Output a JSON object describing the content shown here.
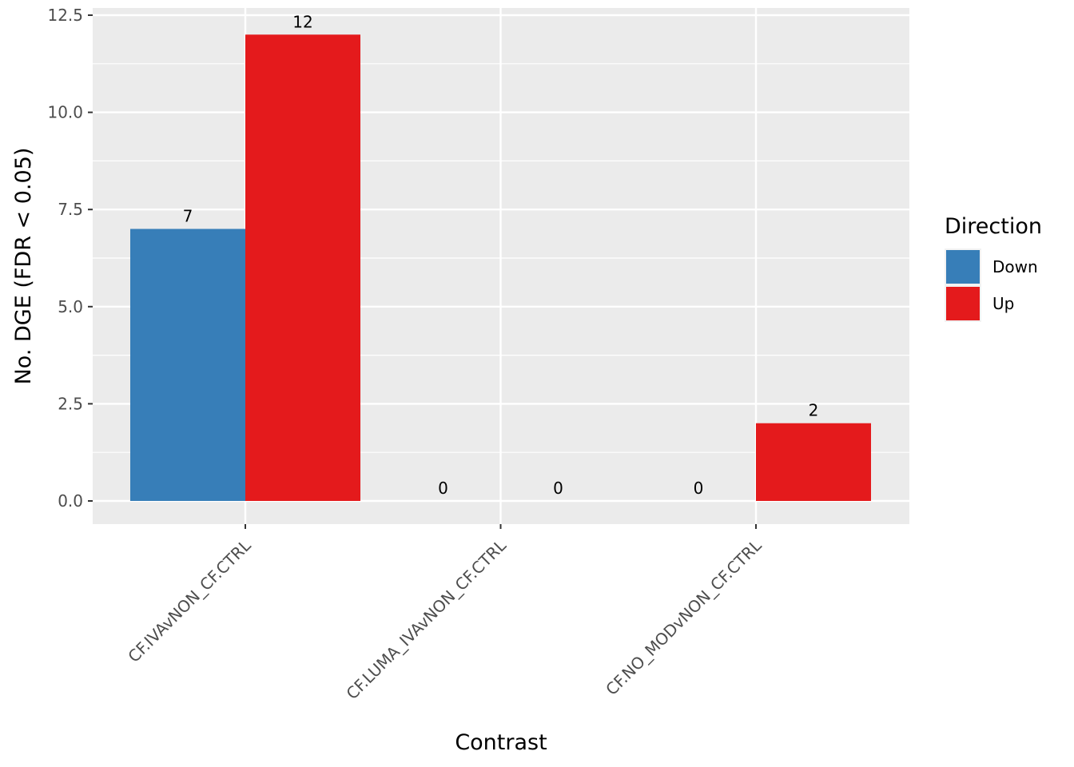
{
  "chart_data": {
    "type": "bar",
    "xlabel": "Contrast",
    "ylabel": "No. DGE (FDR < 0.05)",
    "categories": [
      "CF.IVAvNON_CF.CTRL",
      "CF.LUMA_IVAvNON_CF.CTRL",
      "CF.NO_MODvNON_CF.CTRL"
    ],
    "series": [
      {
        "name": "Down",
        "color": "#377EB8",
        "values": [
          7,
          0,
          0
        ]
      },
      {
        "name": "Up",
        "color": "#E41A1C",
        "values": [
          12,
          0,
          2
        ]
      }
    ],
    "ylim": [
      -0.6,
      12.5
    ],
    "yticks": [
      0.0,
      2.5,
      5.0,
      7.5,
      10.0,
      12.5
    ],
    "ytick_labels": [
      "0.0",
      "2.5",
      "5.0",
      "7.5",
      "10.0",
      "12.5"
    ],
    "grid": true,
    "panel_background": "#EBEBEB",
    "legend": {
      "title": "Direction",
      "position": "right"
    }
  }
}
